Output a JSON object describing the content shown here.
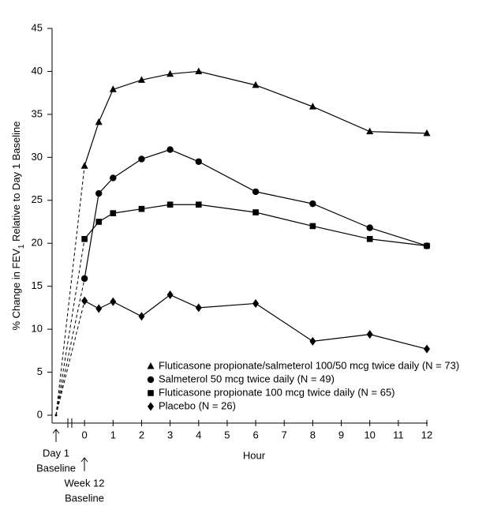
{
  "chart_data": {
    "type": "line",
    "ylabel": [
      "% Change in FEV",
      "1",
      " Relative to Day 1 Baseline"
    ],
    "xlabel": "Hour",
    "x": [
      0,
      0.5,
      1,
      2,
      3,
      4,
      6,
      8,
      10,
      12
    ],
    "xlim": [
      -1,
      12
    ],
    "xticks": [
      0,
      1,
      2,
      3,
      4,
      5,
      6,
      7,
      8,
      9,
      10,
      11,
      12
    ],
    "ylim": [
      0,
      45
    ],
    "yticks": [
      0,
      5,
      10,
      15,
      20,
      25,
      30,
      35,
      40,
      45
    ],
    "day1_baseline": {
      "label": [
        "Day 1",
        "Baseline"
      ],
      "value": 0
    },
    "week12_label": [
      "Week 12",
      "Baseline"
    ],
    "series": [
      {
        "name": "Fluticasone propionate/salmeterol 100/50 mcg twice daily (N = 73)",
        "marker": "triangle",
        "color": "#000000",
        "values": [
          29,
          34.1,
          37.9,
          39,
          39.7,
          40,
          38.4,
          35.9,
          33,
          32.8
        ]
      },
      {
        "name": "Salmeterol 50 mcg twice daily (N = 49)",
        "marker": "circle",
        "color": "#000000",
        "values": [
          15.9,
          25.8,
          27.6,
          29.8,
          30.9,
          29.5,
          26,
          24.6,
          21.8,
          19.7
        ]
      },
      {
        "name": "Fluticasone propionate 100 mcg twice daily (N = 65)",
        "marker": "square",
        "color": "#000000",
        "values": [
          20.5,
          22.5,
          23.5,
          24,
          24.5,
          24.5,
          23.6,
          22,
          20.5,
          19.7
        ]
      },
      {
        "name": "Placebo (N = 26)",
        "marker": "diamond",
        "color": "#000000",
        "values": [
          13.3,
          12.4,
          13.2,
          11.5,
          14,
          12.5,
          13,
          8.6,
          9.4,
          7.7
        ]
      }
    ]
  }
}
